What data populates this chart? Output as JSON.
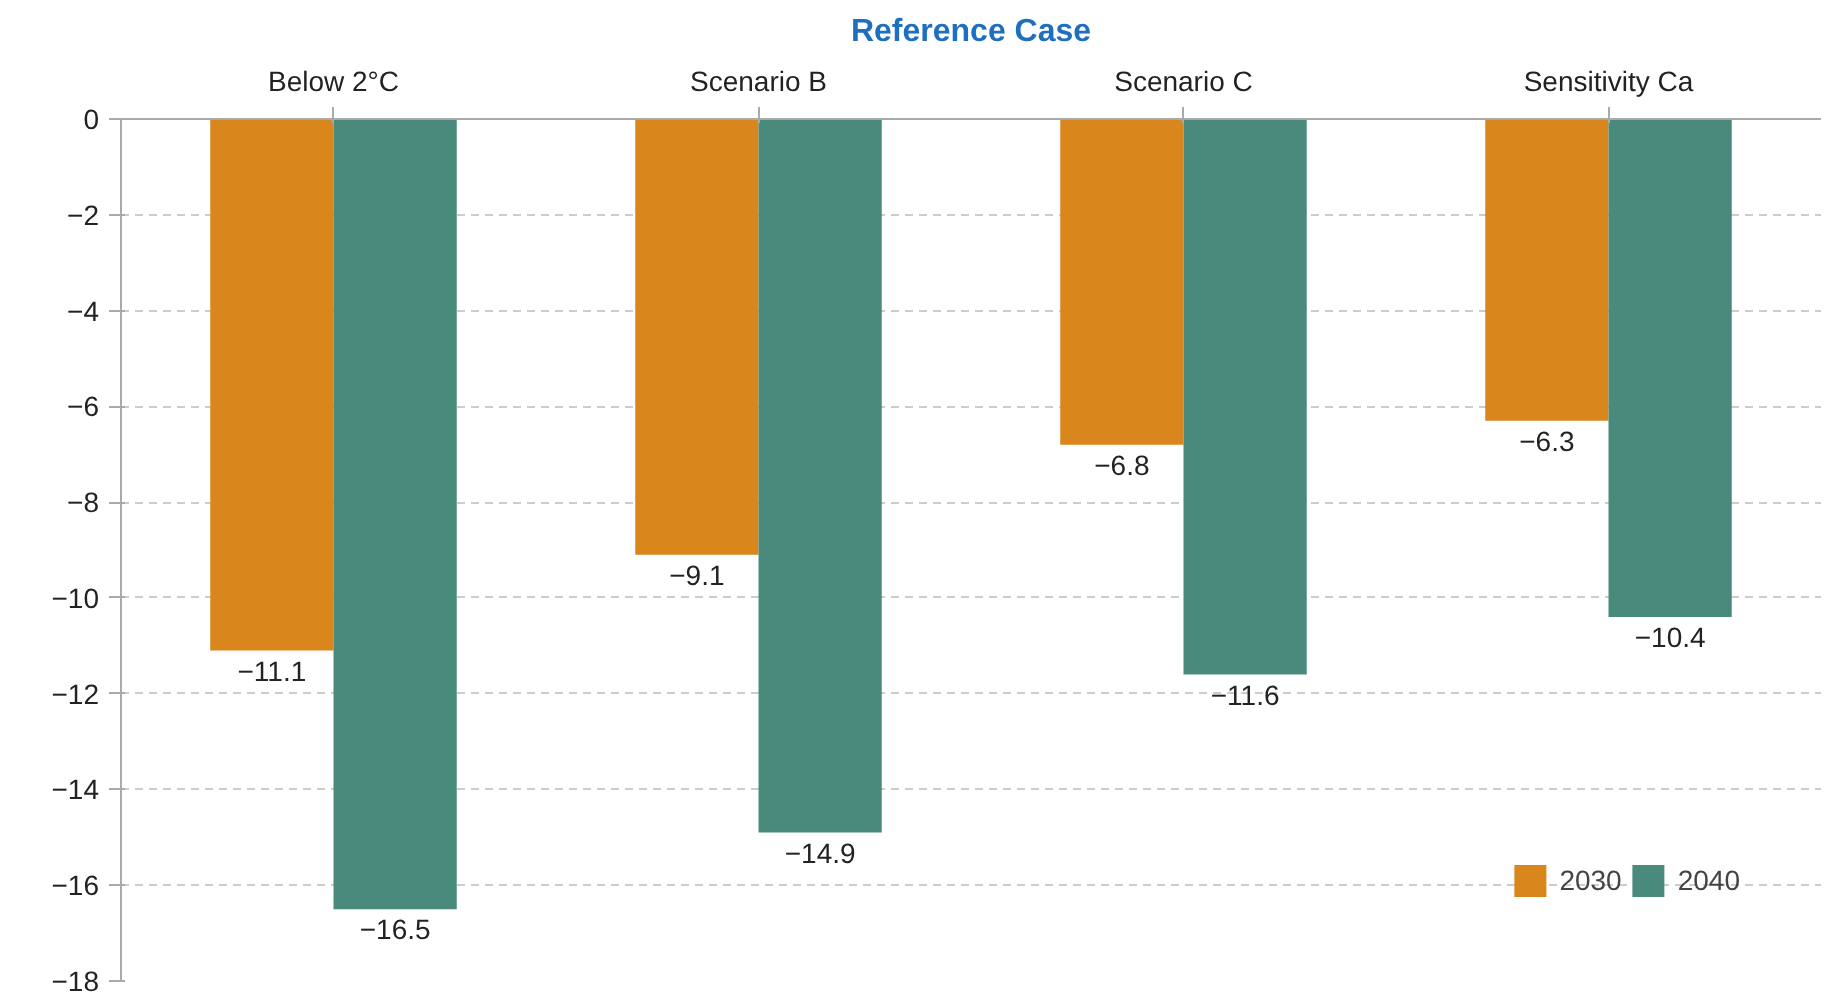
{
  "chart_data": {
    "type": "bar",
    "title": "Reference Case",
    "categories": [
      "Below 2°C",
      "Scenario B",
      "Scenario C",
      "Sensitivity Ca"
    ],
    "series": [
      {
        "name": "2030",
        "color": "#d9861c",
        "values": [
          -11.1,
          -9.1,
          -6.8,
          -6.3
        ],
        "value_labels": [
          "−11.1",
          "−9.1",
          "−6.8",
          "−6.3"
        ]
      },
      {
        "name": "2040",
        "color": "#4a8a7c",
        "values": [
          -16.5,
          -14.9,
          -11.6,
          -10.4
        ],
        "value_labels": [
          "−16.5",
          "−14.9",
          "−11.6",
          "−10.4"
        ]
      }
    ],
    "ylim": [
      -18,
      0
    ],
    "yticks": [
      {
        "value": 0,
        "label": "0"
      },
      {
        "value": -2,
        "label": "−2"
      },
      {
        "value": -4,
        "label": "−4"
      },
      {
        "value": -6,
        "label": "−6"
      },
      {
        "value": -8,
        "label": "−8"
      },
      {
        "value": -10,
        "label": "−10"
      },
      {
        "value": -12,
        "label": "−12"
      },
      {
        "value": -14,
        "label": "−14"
      },
      {
        "value": -16,
        "label": "−16"
      },
      {
        "value": -18,
        "label": "−18"
      }
    ],
    "grid": "y",
    "legend": "bottom right"
  }
}
